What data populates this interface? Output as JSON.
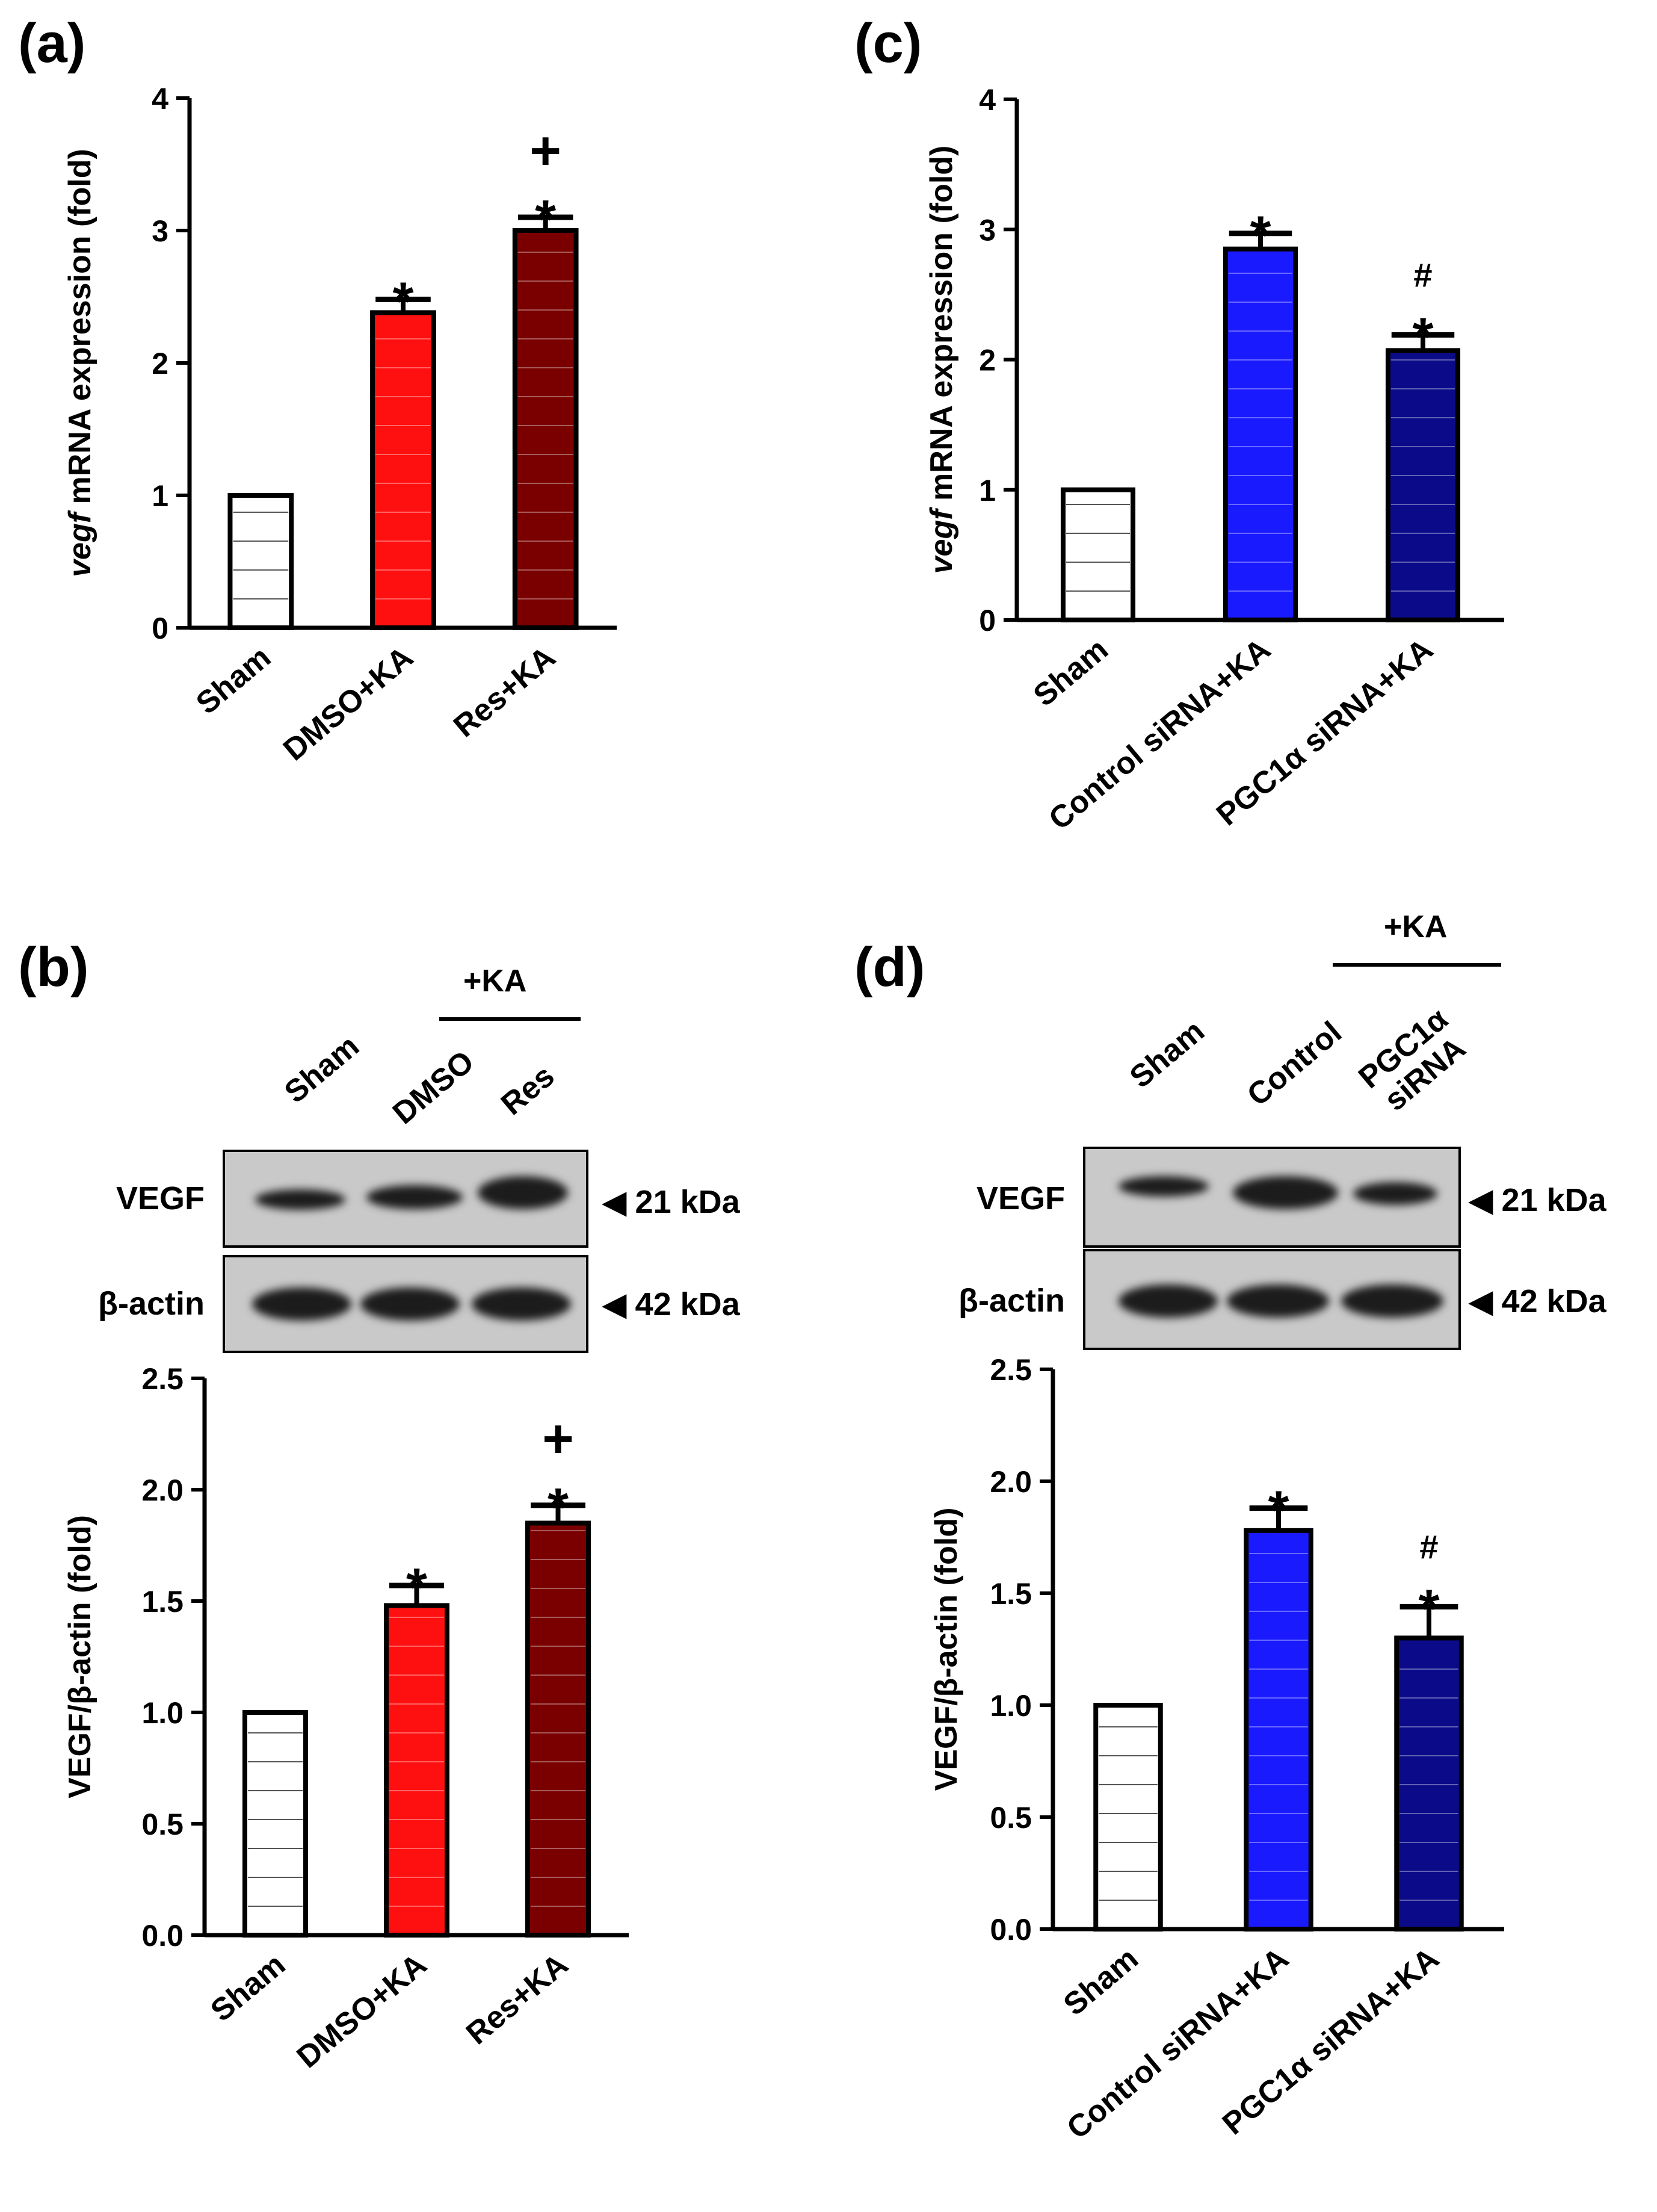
{
  "panels": {
    "a": "(a)",
    "b": "(b)",
    "c": "(c)",
    "d": "(d)"
  },
  "western_b": {
    "group_label": "+KA",
    "lanes": [
      "Sham",
      "DMSO",
      "Res"
    ],
    "rows": [
      {
        "label": "VEGF",
        "size": "21 kDa"
      },
      {
        "label": "β-actin",
        "size": "42 kDa"
      }
    ]
  },
  "western_d": {
    "group_label": "+KA",
    "lanes": [
      "Sham",
      "Control",
      "PGC1α siRNA"
    ],
    "lane3_lines": [
      "PGC1α",
      "siRNA"
    ],
    "rows": [
      {
        "label": "VEGF",
        "size": "21 kDa"
      },
      {
        "label": "β-actin",
        "size": "42 kDa"
      }
    ]
  },
  "chart_data": [
    {
      "id": "a",
      "type": "bar",
      "categories": [
        "Sham",
        "DMSO+KA",
        "Res+KA"
      ],
      "values": [
        1.0,
        2.38,
        3.0
      ],
      "errors": [
        0.0,
        0.1,
        0.1
      ],
      "annotations": [
        [],
        [
          "*"
        ],
        [
          "*",
          "+"
        ]
      ],
      "colors": [
        "#ffffff",
        "#ff1010",
        "#7a0000"
      ],
      "ylabel_italic": "vegf",
      "ylabel_rest": " mRNA expression (fold)",
      "ylim": [
        0,
        4
      ],
      "yticks": [
        "0",
        "1",
        "2",
        "3",
        "4"
      ],
      "ytick_values": [
        0,
        1,
        2,
        3,
        4
      ]
    },
    {
      "id": "b",
      "type": "bar",
      "categories": [
        "Sham",
        "DMSO+KA",
        "Res+KA"
      ],
      "values": [
        1.0,
        1.48,
        1.85
      ],
      "errors": [
        0.0,
        0.09,
        0.08
      ],
      "annotations": [
        [],
        [
          "*"
        ],
        [
          "*",
          "+"
        ]
      ],
      "colors": [
        "#ffffff",
        "#ff1010",
        "#7a0000"
      ],
      "ylabel_italic": "",
      "ylabel_rest": "VEGF/β-actin (fold)",
      "ylim": [
        0,
        2.5
      ],
      "yticks": [
        "0.0",
        "0.5",
        "1.0",
        "1.5",
        "2.0",
        "2.5"
      ],
      "ytick_values": [
        0,
        0.5,
        1.0,
        1.5,
        2.0,
        2.5
      ]
    },
    {
      "id": "c",
      "type": "bar",
      "categories": [
        "Sham",
        "Control siRNA+KA",
        "PGC1α siRNA+KA"
      ],
      "values": [
        1.0,
        2.85,
        2.07
      ],
      "errors": [
        0.0,
        0.12,
        0.12
      ],
      "annotations": [
        [],
        [
          "*"
        ],
        [
          "*",
          "#"
        ]
      ],
      "colors": [
        "#ffffff",
        "#1a1aff",
        "#0b0b8a"
      ],
      "ylabel_italic": "vegf",
      "ylabel_rest": " mRNA expression (fold)",
      "ylim": [
        0,
        4
      ],
      "yticks": [
        "0",
        "1",
        "2",
        "3",
        "4"
      ],
      "ytick_values": [
        0,
        1,
        2,
        3,
        4
      ]
    },
    {
      "id": "d",
      "type": "bar",
      "categories": [
        "Sham",
        "Control siRNA+KA",
        "PGC1α siRNA+KA"
      ],
      "values": [
        1.0,
        1.78,
        1.3
      ],
      "errors": [
        0.0,
        0.1,
        0.14
      ],
      "annotations": [
        [],
        [
          "*"
        ],
        [
          "*",
          "#"
        ]
      ],
      "colors": [
        "#ffffff",
        "#1a1aff",
        "#0b0b8a"
      ],
      "ylabel_italic": "",
      "ylabel_rest": "VEGF/β-actin (fold)",
      "ylim": [
        0,
        2.5
      ],
      "yticks": [
        "0.0",
        "0.5",
        "1.0",
        "1.5",
        "2.0",
        "2.5"
      ],
      "ytick_values": [
        0,
        0.5,
        1.0,
        1.5,
        2.0,
        2.5
      ]
    }
  ]
}
